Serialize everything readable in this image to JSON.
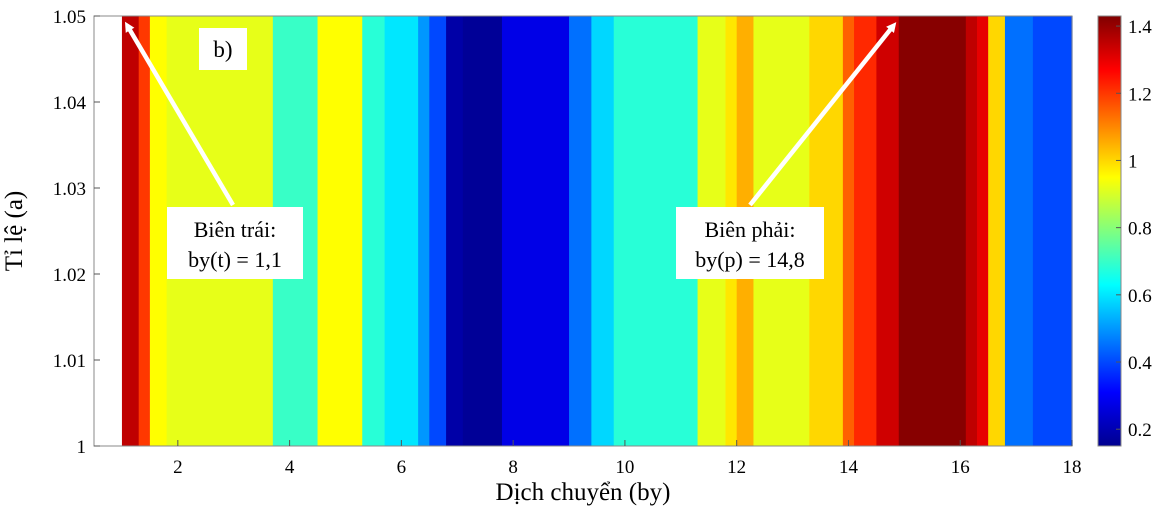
{
  "chart_data": {
    "type": "heatmap",
    "panel_label": "b)",
    "xlabel": "Dịch chuyển (by)",
    "ylabel": "Tỉ lệ (a)",
    "xlim": [
      0.5,
      18
    ],
    "ylim": [
      1,
      1.05
    ],
    "xticks": [
      2,
      4,
      6,
      8,
      10,
      12,
      14,
      16,
      18
    ],
    "yticks": [
      1,
      1.01,
      1.02,
      1.03,
      1.04,
      1.05
    ],
    "ytick_labels": [
      "1",
      "1.01",
      "1.02",
      "1.03",
      "1.04",
      "1.05"
    ],
    "colorbar": {
      "colormap": "jet",
      "range": [
        0.15,
        1.43
      ],
      "ticks": [
        0.2,
        0.4,
        0.6,
        0.8,
        1,
        1.2,
        1.4
      ],
      "tick_labels": [
        "0.2",
        "0.4",
        "0.6",
        "0.8",
        "1",
        "1.2",
        "1.4"
      ]
    },
    "band_edges": [
      0.5,
      1.0,
      1.3,
      1.5,
      1.8,
      3.7,
      4.5,
      5.3,
      5.7,
      6.3,
      6.5,
      6.8,
      7.0,
      7.1,
      7.8,
      9.0,
      9.4,
      9.8,
      11.3,
      11.8,
      12.0,
      12.3,
      13.3,
      13.9,
      14.1,
      14.5,
      14.9,
      16.1,
      16.3,
      16.5,
      16.8,
      17.3,
      18.0
    ],
    "band_values": [
      null,
      1.35,
      1.2,
      0.95,
      0.92,
      0.7,
      0.95,
      0.68,
      0.6,
      0.5,
      0.4,
      0.2,
      0.2,
      0.18,
      0.28,
      0.45,
      0.58,
      0.68,
      0.92,
      0.98,
      1.05,
      0.92,
      1.0,
      1.15,
      1.22,
      1.33,
      1.42,
      1.35,
      1.3,
      1.0,
      0.45,
      0.4
    ],
    "annotations": [
      {
        "lines": [
          "Biên trái:",
          "by(t) = 1,1"
        ],
        "arrow_to": [
          1.1,
          1.05
        ]
      },
      {
        "lines": [
          "Biên phải:",
          "by(p) = 14,8"
        ],
        "arrow_to": [
          14.8,
          1.05
        ]
      }
    ]
  }
}
